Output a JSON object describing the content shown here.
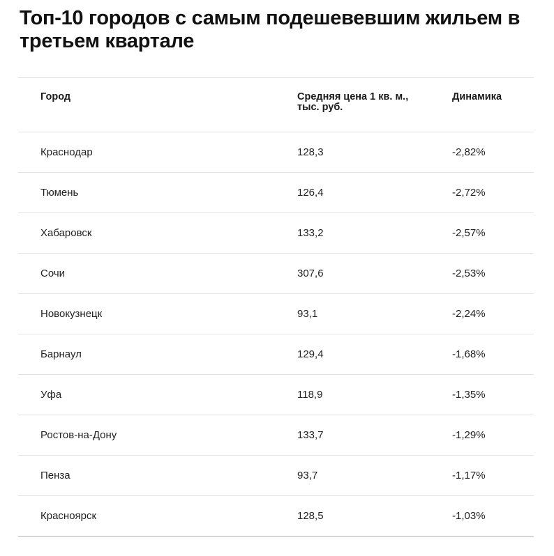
{
  "title": "Топ-10 городов с самым подешевевшим жильем в третьем квартале",
  "table": {
    "columns": [
      "Город",
      "Средняя цена 1 кв. м., тыс. руб.",
      "Динамика"
    ],
    "rows": [
      [
        "Краснодар",
        "128,3",
        "-2,82%"
      ],
      [
        "Тюмень",
        "126,4",
        "-2,72%"
      ],
      [
        "Хабаровск",
        "133,2",
        "-2,57%"
      ],
      [
        "Сочи",
        "307,6",
        "-2,53%"
      ],
      [
        "Новокузнецк",
        "93,1",
        "-2,24%"
      ],
      [
        "Барнаул",
        "129,4",
        "-1,68%"
      ],
      [
        "Уфа",
        "118,9",
        "-1,35%"
      ],
      [
        "Ростов-на-Дону",
        "133,7",
        "-1,29%"
      ],
      [
        "Пенза",
        "93,7",
        "-1,17%"
      ],
      [
        "Красноярск",
        "128,5",
        "-1,03%"
      ]
    ]
  }
}
